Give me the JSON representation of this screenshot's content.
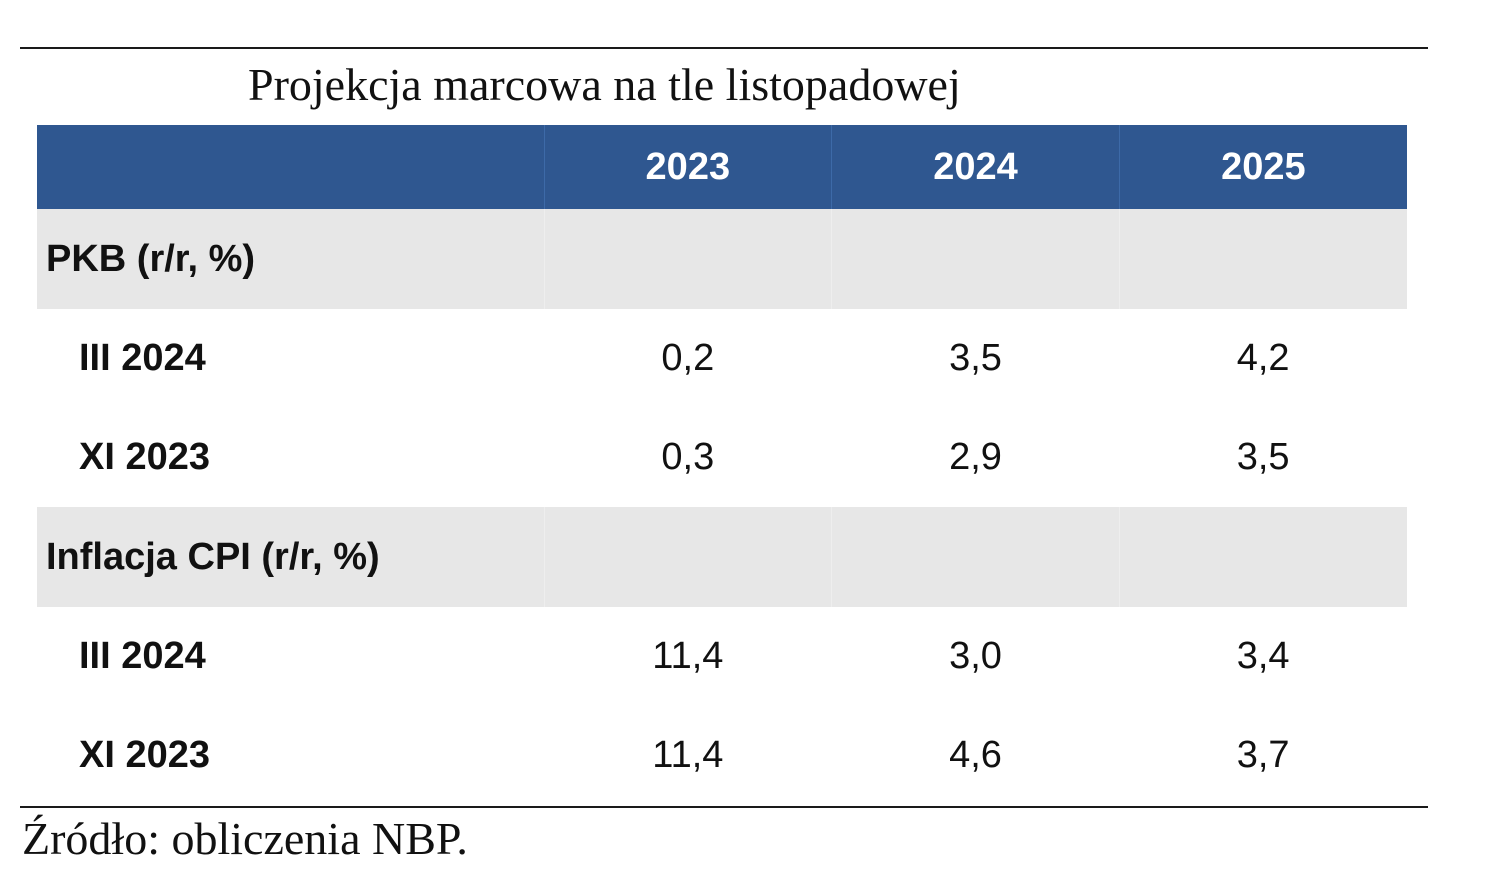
{
  "title": "Projekcja marcowa na tle listopadowej",
  "header": {
    "years": [
      "2023",
      "2024",
      "2025"
    ]
  },
  "sections": [
    {
      "label": "PKB (r/r, %)",
      "rows": [
        {
          "label": "III 2024",
          "values": [
            "0,2",
            "3,5",
            "4,2"
          ]
        },
        {
          "label": "XI 2023",
          "values": [
            "0,3",
            "2,9",
            "3,5"
          ]
        }
      ]
    },
    {
      "label": "Inflacja CPI (r/r, %)",
      "rows": [
        {
          "label": "III 2024",
          "values": [
            "11,4",
            "3,0",
            "3,4"
          ]
        },
        {
          "label": "XI 2023",
          "values": [
            "11,4",
            "4,6",
            "3,7"
          ]
        }
      ]
    }
  ],
  "source": "Źródło: obliczenia NBP.",
  "colors": {
    "header_bg": "#2f5790",
    "section_bg": "#e7e7e7"
  }
}
